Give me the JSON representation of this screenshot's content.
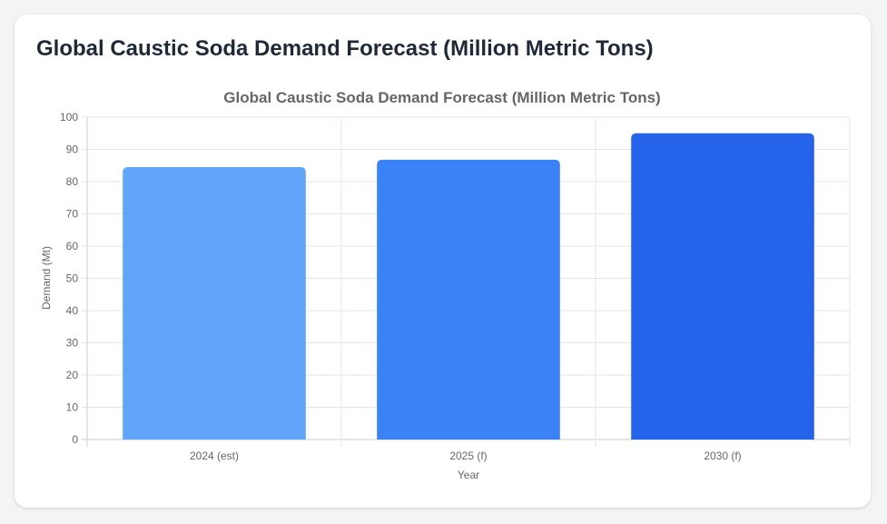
{
  "header": {
    "title": "Global Caustic Soda Demand Forecast (Million Metric Tons)"
  },
  "chart_data": {
    "type": "bar",
    "title": "Global Caustic Soda Demand Forecast (Million Metric Tons)",
    "xlabel": "Year",
    "ylabel": "Demand (Mt)",
    "categories": [
      "2024 (est)",
      "2025 (f)",
      "2030 (f)"
    ],
    "values": [
      84.5,
      86.8,
      95
    ],
    "ylim": [
      0,
      100
    ],
    "yticks": [
      0,
      10,
      20,
      30,
      40,
      50,
      60,
      70,
      80,
      90,
      100
    ],
    "grid": true,
    "legend": "none",
    "colors": [
      "#60a5fa",
      "#3b82f6",
      "#2563eb"
    ]
  }
}
